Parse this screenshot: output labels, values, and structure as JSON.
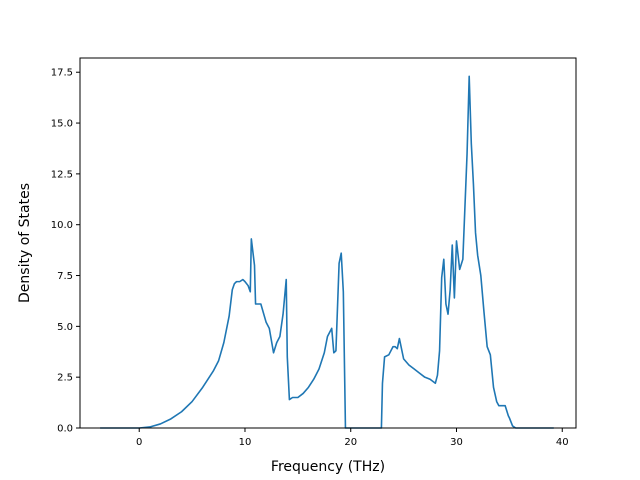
{
  "chart_data": {
    "type": "line",
    "title": "",
    "xlabel": "Frequency (THz)",
    "ylabel": "Density of States",
    "xlim": [
      -5.6,
      41.3
    ],
    "ylim": [
      0,
      18.2
    ],
    "x_ticks": [
      0,
      10,
      20,
      30,
      40
    ],
    "x_tick_labels": [
      "0",
      "10",
      "20",
      "30",
      "40"
    ],
    "y_ticks": [
      0,
      2.5,
      5,
      7.5,
      10,
      12.5,
      15,
      17.5
    ],
    "y_tick_labels": [
      "0.0",
      "2.5",
      "5.0",
      "7.5",
      "10.0",
      "12.5",
      "15.0",
      "17.5"
    ],
    "grid": false,
    "legend": "none",
    "line_color": "#1f77b4",
    "series": [
      {
        "x": [
          -3.7,
          -2,
          0,
          1,
          2,
          3,
          4,
          5,
          6,
          7,
          7.5,
          8,
          8.5,
          8.8,
          9.0,
          9.2,
          9.5,
          9.8,
          10.0,
          10.3,
          10.5,
          10.6,
          10.9,
          11.0,
          11.5,
          12.0,
          12.3,
          12.7,
          13.0,
          13.3,
          13.6,
          13.9,
          14.0,
          14.2,
          14.5,
          15.0,
          15.5,
          16.0,
          16.5,
          17.0,
          17.5,
          17.8,
          18.2,
          18.4,
          18.6,
          18.9,
          19.1,
          19.3,
          19.5,
          20.0,
          21.0,
          22.0,
          22.9,
          23.0,
          23.2,
          23.6,
          24.0,
          24.2,
          24.4,
          24.6,
          25.0,
          25.5,
          26.0,
          26.5,
          27.0,
          27.5,
          28.0,
          28.2,
          28.4,
          28.6,
          28.8,
          29.0,
          29.2,
          29.4,
          29.6,
          29.8,
          30.0,
          30.3,
          30.6,
          31.0,
          31.2,
          31.4,
          31.6,
          31.8,
          32.0,
          32.3,
          32.6,
          32.9,
          33.2,
          33.5,
          33.8,
          34.0,
          34.3,
          34.6,
          34.9,
          35.0,
          35.3,
          35.6,
          35.8,
          36.0,
          37.0,
          38.0,
          39.2
        ],
        "y": [
          0,
          0,
          0,
          0.05,
          0.2,
          0.45,
          0.8,
          1.3,
          2.0,
          2.8,
          3.3,
          4.2,
          5.5,
          6.8,
          7.1,
          7.2,
          7.2,
          7.3,
          7.2,
          7.0,
          6.7,
          9.3,
          8.0,
          6.1,
          6.1,
          5.2,
          4.9,
          3.7,
          4.2,
          4.5,
          5.6,
          7.3,
          3.5,
          1.4,
          1.5,
          1.5,
          1.7,
          2.0,
          2.4,
          2.9,
          3.7,
          4.5,
          4.9,
          3.7,
          3.8,
          8.1,
          8.6,
          6.7,
          0,
          0,
          0,
          0,
          0,
          2.2,
          3.5,
          3.6,
          4.0,
          4.0,
          3.9,
          4.4,
          3.4,
          3.1,
          2.9,
          2.7,
          2.5,
          2.4,
          2.2,
          2.6,
          3.8,
          7.4,
          8.3,
          6.1,
          5.6,
          6.8,
          9.0,
          6.4,
          9.2,
          7.8,
          8.3,
          13.5,
          17.3,
          14.0,
          12.0,
          9.6,
          8.5,
          7.5,
          5.7,
          4.0,
          3.6,
          2.0,
          1.3,
          1.1,
          1.1,
          1.1,
          0.6,
          0.5,
          0.1,
          0,
          0,
          0,
          0,
          0,
          0
        ]
      }
    ]
  }
}
